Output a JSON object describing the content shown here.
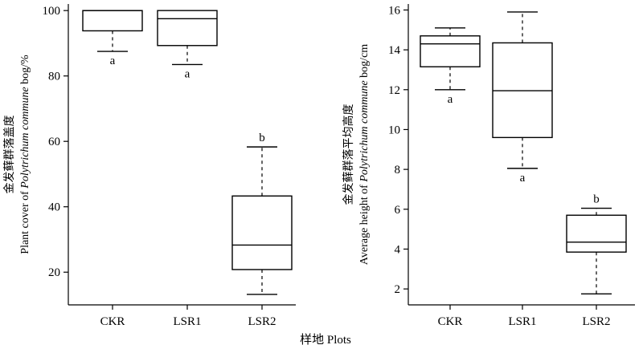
{
  "figure": {
    "x_title": "样地 Plots"
  },
  "chart_data": [
    {
      "type": "box",
      "ylabel_zh": "金发藓群落盖度",
      "ylabel_en_prefix": "Plant cover of ",
      "ylabel_en_italic": "Polytrichum commune",
      "ylabel_en_suffix": " bog/%",
      "ylim": [
        10,
        102
      ],
      "yticks": [
        20,
        40,
        60,
        80,
        100
      ],
      "grid": false,
      "categories": [
        "CKR",
        "LSR1",
        "LSR2"
      ],
      "boxes": [
        {
          "category": "CKR",
          "whisker_low": 87.5,
          "q1": 93.8,
          "median": 100,
          "q3": 100,
          "whisker_high": 100,
          "sig": "a"
        },
        {
          "category": "LSR1",
          "whisker_low": 83.5,
          "q1": 89.3,
          "median": 97.5,
          "q3": 100,
          "whisker_high": 100,
          "sig": "a"
        },
        {
          "category": "LSR2",
          "whisker_low": 13.2,
          "q1": 20.8,
          "median": 28.3,
          "q3": 43.3,
          "whisker_high": 58.3,
          "sig": "b"
        }
      ]
    },
    {
      "type": "box",
      "ylabel_zh": "金发藓群落平均高度",
      "ylabel_en_prefix": "Average height of ",
      "ylabel_en_italic": "Polytrichum commune",
      "ylabel_en_suffix": " bog/cm",
      "ylim": [
        1.2,
        16.3
      ],
      "yticks": [
        2,
        4,
        6,
        8,
        10,
        12,
        14,
        16
      ],
      "grid": false,
      "categories": [
        "CKR",
        "LSR1",
        "LSR2"
      ],
      "boxes": [
        {
          "category": "CKR",
          "whisker_low": 12.0,
          "q1": 13.15,
          "median": 14.3,
          "q3": 14.7,
          "whisker_high": 15.1,
          "sig": "a"
        },
        {
          "category": "LSR1",
          "whisker_low": 8.05,
          "q1": 9.6,
          "median": 11.95,
          "q3": 14.35,
          "whisker_high": 15.9,
          "sig": "a"
        },
        {
          "category": "LSR2",
          "whisker_low": 1.75,
          "q1": 3.85,
          "median": 4.35,
          "q3": 5.7,
          "whisker_high": 6.05,
          "sig": "b"
        }
      ]
    }
  ]
}
